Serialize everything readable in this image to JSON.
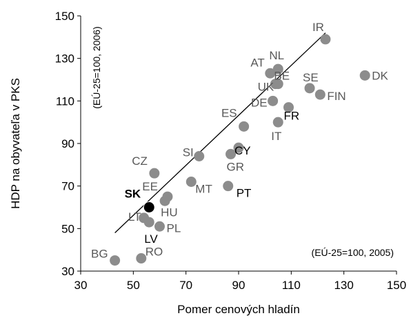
{
  "chart_data": {
    "type": "scatter",
    "xlabel": "Pomer cenových hladín",
    "ylabel": "HDP na obyvateľa v PKS",
    "xlim": [
      30,
      150
    ],
    "ylim": [
      30,
      150
    ],
    "xticks": [
      "30",
      "50",
      "70",
      "90",
      "110",
      "130",
      "150"
    ],
    "yticks": [
      "30",
      "50",
      "70",
      "90",
      "110",
      "130",
      "150"
    ],
    "y_note": "(EÚ-25=100, 2006)",
    "x_note": "(EÚ-25=100, 2005)",
    "grid": false,
    "legend": "none",
    "marker_color": "#8c8c8c",
    "highlight_color": "#000000",
    "label_color_default": "#595959",
    "label_color_emph": "#000000",
    "trendline": {
      "x": [
        43,
        123
      ],
      "y": [
        48,
        142
      ]
    },
    "points": [
      {
        "label": "IR",
        "x": 123,
        "y": 139,
        "emph": false
      },
      {
        "label": "DK",
        "x": 138,
        "y": 122,
        "emph": false
      },
      {
        "label": "NL",
        "x": 105,
        "y": 125,
        "emph": false
      },
      {
        "label": "AT",
        "x": 102,
        "y": 123,
        "emph": false
      },
      {
        "label": "BE",
        "x": 104,
        "y": 118,
        "emph": false
      },
      {
        "label": "UK",
        "x": 105,
        "y": 118,
        "emph": false
      },
      {
        "label": "SE",
        "x": 117,
        "y": 116,
        "emph": false
      },
      {
        "label": "FIN",
        "x": 121,
        "y": 113,
        "emph": false
      },
      {
        "label": "DE",
        "x": 103,
        "y": 110,
        "emph": false
      },
      {
        "label": "FR",
        "x": 109,
        "y": 107,
        "emph": true
      },
      {
        "label": "ES",
        "x": 92,
        "y": 98,
        "emph": false
      },
      {
        "label": "IT",
        "x": 105,
        "y": 100,
        "emph": false
      },
      {
        "label": "CY",
        "x": 90,
        "y": 88,
        "emph": true
      },
      {
        "label": "GR",
        "x": 87,
        "y": 85,
        "emph": false
      },
      {
        "label": "SI",
        "x": 75,
        "y": 84,
        "emph": false
      },
      {
        "label": "CZ",
        "x": 58,
        "y": 76,
        "emph": false
      },
      {
        "label": "MT",
        "x": 72,
        "y": 72,
        "emph": false
      },
      {
        "label": "PT",
        "x": 86,
        "y": 70,
        "emph": true
      },
      {
        "label": "EE",
        "x": 63,
        "y": 65,
        "emph": false
      },
      {
        "label": "HU",
        "x": 62,
        "y": 63,
        "emph": false
      },
      {
        "label": "SK",
        "x": 56,
        "y": 60,
        "emph": true,
        "highlight": true
      },
      {
        "label": "LT",
        "x": 54,
        "y": 55,
        "emph": false
      },
      {
        "label": "LV",
        "x": 56,
        "y": 53,
        "emph": true
      },
      {
        "label": "PL",
        "x": 60,
        "y": 51,
        "emph": false
      },
      {
        "label": "RO",
        "x": 53,
        "y": 36,
        "emph": false
      },
      {
        "label": "BG",
        "x": 43,
        "y": 35,
        "emph": false
      }
    ]
  }
}
